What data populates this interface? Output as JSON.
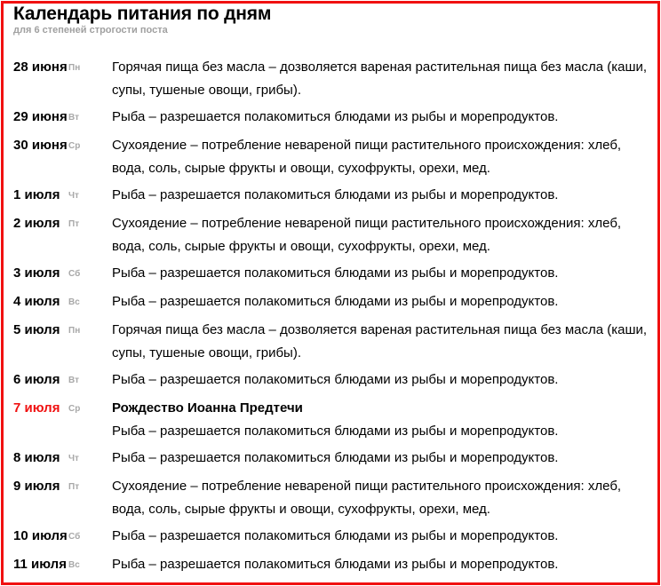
{
  "title": "Календарь питания по дням",
  "subtitle": "для 6 степеней строгости поста",
  "colors": {
    "border": "#f01010",
    "holiday_date": "#f01010",
    "weekday": "#a8a8a8"
  },
  "days": [
    {
      "date": "28 июня",
      "dow": "Пн",
      "text": "Горячая пища без масла – дозволяется вареная растительная пища без масла (каши, супы, тушеные овощи, грибы)."
    },
    {
      "date": "29 июня",
      "dow": "Вт",
      "text": "Рыба – разрешается полакомиться блюдами из рыбы и морепродуктов."
    },
    {
      "date": "30 июня",
      "dow": "Ср",
      "text": "Сухоядение – потребление невареной пищи растительного происхождения: хлеб, вода, соль, сырые фрукты и овощи, сухофрукты, орехи, мед."
    },
    {
      "date": "1 июля",
      "dow": "Чт",
      "text": "Рыба – разрешается полакомиться блюдами из рыбы и морепродуктов."
    },
    {
      "date": "2 июля",
      "dow": "Пт",
      "text": "Сухоядение – потребление невареной пищи растительного происхождения: хлеб, вода, соль, сырые фрукты и овощи, сухофрукты, орехи, мед."
    },
    {
      "date": "3 июля",
      "dow": "Сб",
      "text": "Рыба – разрешается полакомиться блюдами из рыбы и морепродуктов."
    },
    {
      "date": "4 июля",
      "dow": "Вс",
      "text": "Рыба – разрешается полакомиться блюдами из рыбы и морепродуктов."
    },
    {
      "date": "5 июля",
      "dow": "Пн",
      "text": "Горячая пища без масла – дозволяется вареная растительная пища без масла (каши, супы, тушеные овощи, грибы)."
    },
    {
      "date": "6 июля",
      "dow": "Вт",
      "text": "Рыба – разрешается полакомиться блюдами из рыбы и морепродуктов."
    },
    {
      "date": "7 июля",
      "dow": "Ср",
      "holiday": "Рождество Иоанна Предтечи",
      "text": "Рыба – разрешается полакомиться блюдами из рыбы и морепродуктов."
    },
    {
      "date": "8 июля",
      "dow": "Чт",
      "text": "Рыба – разрешается полакомиться блюдами из рыбы и морепродуктов."
    },
    {
      "date": "9 июля",
      "dow": "Пт",
      "text": "Сухоядение – потребление невареной пищи растительного происхождения: хлеб, вода, соль, сырые фрукты и овощи, сухофрукты, орехи, мед."
    },
    {
      "date": "10 июля",
      "dow": "Сб",
      "text": "Рыба – разрешается полакомиться блюдами из рыбы и морепродуктов."
    },
    {
      "date": "11 июля",
      "dow": "Вс",
      "text": "Рыба – разрешается полакомиться блюдами из рыбы и морепродуктов."
    }
  ]
}
